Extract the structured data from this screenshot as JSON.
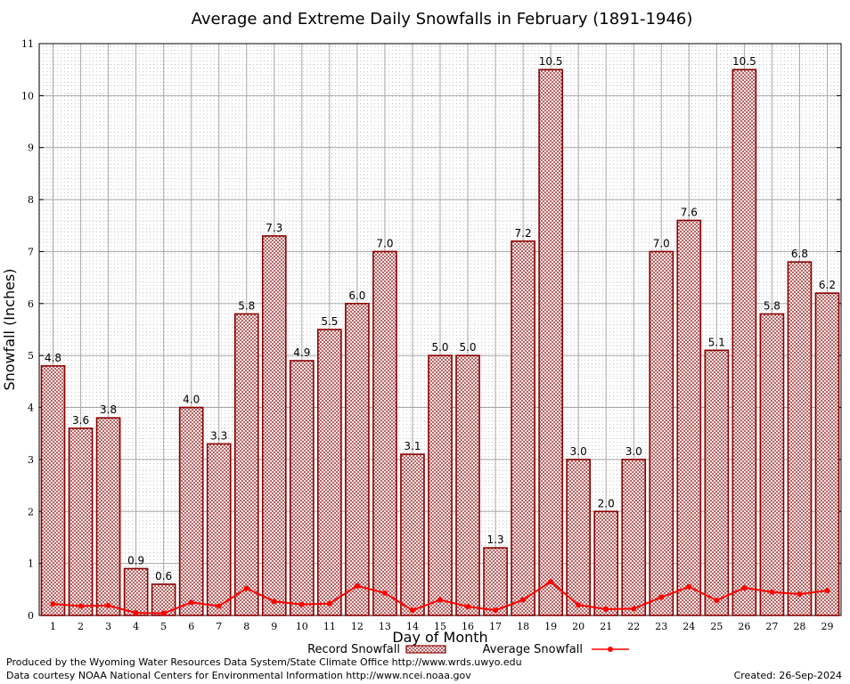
{
  "chart_data": {
    "type": "bar",
    "title": "Average and Extreme Daily Snowfalls in February (1891-1946)",
    "xlabel": "Day of Month",
    "ylabel": "Snowfall (Inches)",
    "ylim": [
      0,
      11
    ],
    "yticks": [
      0,
      1,
      2,
      3,
      4,
      5,
      6,
      7,
      8,
      9,
      10,
      11
    ],
    "grid": true,
    "categories": [
      "1",
      "2",
      "3",
      "4",
      "5",
      "6",
      "7",
      "8",
      "9",
      "10",
      "11",
      "12",
      "13",
      "14",
      "15",
      "16",
      "17",
      "18",
      "19",
      "20",
      "21",
      "22",
      "23",
      "24",
      "25",
      "26",
      "27",
      "28",
      "29"
    ],
    "series": [
      {
        "name": "Record Snowfall",
        "kind": "bar",
        "values": [
          4.8,
          3.6,
          3.8,
          0.9,
          0.6,
          4.0,
          3.3,
          5.8,
          7.3,
          4.9,
          5.5,
          6.0,
          7.0,
          3.1,
          5.0,
          5.0,
          1.3,
          7.2,
          10.5,
          3.0,
          2.0,
          3.0,
          7.0,
          7.6,
          5.1,
          10.5,
          5.8,
          6.8,
          6.2
        ],
        "labels": [
          "4.8",
          "3.6",
          "3.8",
          "0.9",
          "0.6",
          "4.0",
          "3.3",
          "5.8",
          "7.3",
          "4.9",
          "5.5",
          "6.0",
          "7.0",
          "3.1",
          "5.0",
          "5.0",
          "1.3",
          "7.2",
          "10.5",
          "3.0",
          "2.0",
          "3.0",
          "7.0",
          "7.6",
          "5.1",
          "10.5",
          "5.8",
          "6.8",
          "6.2"
        ],
        "color": "#8b0000"
      },
      {
        "name": "Average Snowfall",
        "kind": "line",
        "values": [
          0.22,
          0.18,
          0.19,
          0.05,
          0.04,
          0.25,
          0.18,
          0.52,
          0.27,
          0.21,
          0.23,
          0.57,
          0.43,
          0.1,
          0.3,
          0.17,
          0.1,
          0.3,
          0.65,
          0.2,
          0.12,
          0.13,
          0.35,
          0.55,
          0.29,
          0.53,
          0.45,
          0.41,
          0.48
        ],
        "color": "#ff0000"
      }
    ],
    "legend_position": "bottom"
  },
  "footer": {
    "producer": "Produced by the Wyoming Water Resources Data System/State Climate Office http://www.wrds.uwyo.edu",
    "source": "Data courtesy NOAA National Centers for Environmental Information http://www.ncei.noaa.gov",
    "created": "Created:  26-Sep-2024"
  }
}
